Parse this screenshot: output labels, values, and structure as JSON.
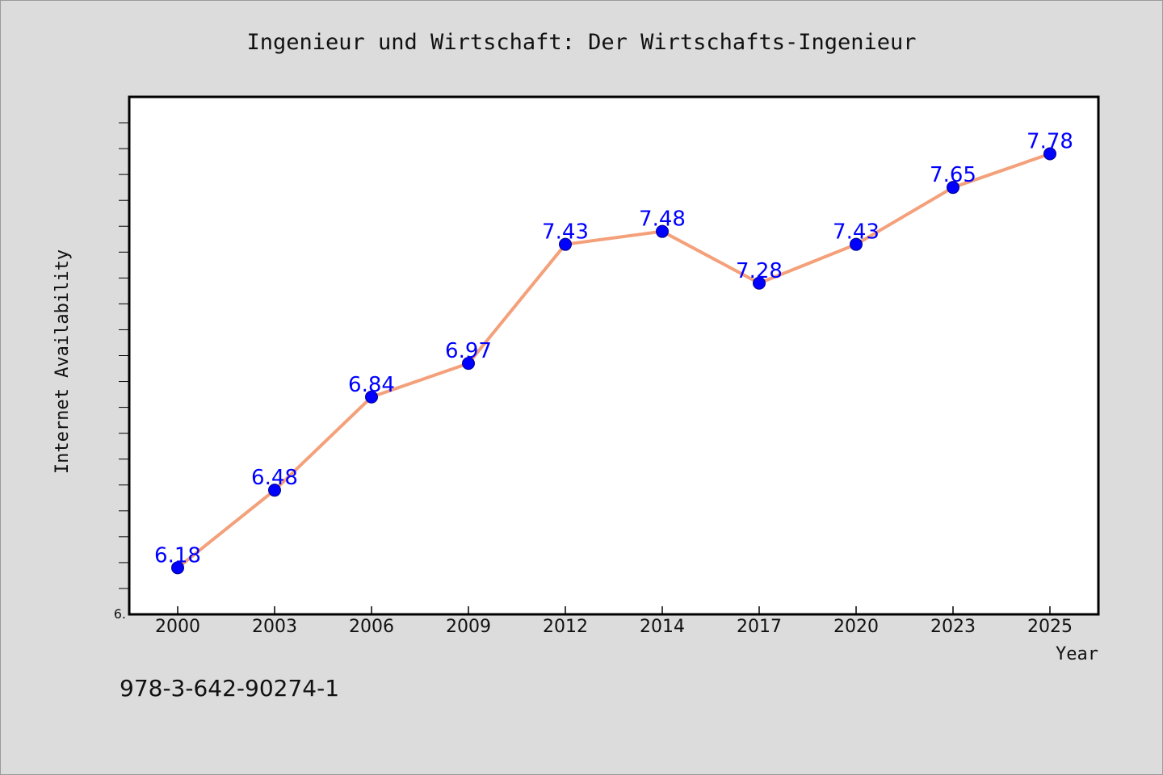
{
  "isbn": "978-3-642-90274-1",
  "colors": {
    "background": "#dcdcdc",
    "plot_background": "#ffffff",
    "line": "#f4a07a",
    "marker": "#0000ff",
    "data_label": "#0000ff"
  },
  "chart_data": {
    "type": "line",
    "title": "Ingenieur und Wirtschaft: Der Wirtschafts-Ingenieur",
    "xlabel": "Year",
    "ylabel": "Internet Availability",
    "categories": [
      "2000",
      "2003",
      "2006",
      "2009",
      "2012",
      "2014",
      "2017",
      "2020",
      "2023",
      "2025"
    ],
    "series": [
      {
        "values": [
          6.18,
          6.48,
          6.84,
          6.97,
          7.43,
          7.48,
          7.28,
          7.43,
          7.65,
          7.78
        ]
      }
    ],
    "data_labels": [
      "6.18",
      "6.48",
      "6.84",
      "6.97",
      "7.43",
      "7.48",
      "7.28",
      "7.43",
      "7.65",
      "7.78"
    ],
    "ylim": [
      6.0,
      8.0
    ],
    "y_tick_labels": [
      "6."
    ],
    "grid": false,
    "legend": "none"
  }
}
